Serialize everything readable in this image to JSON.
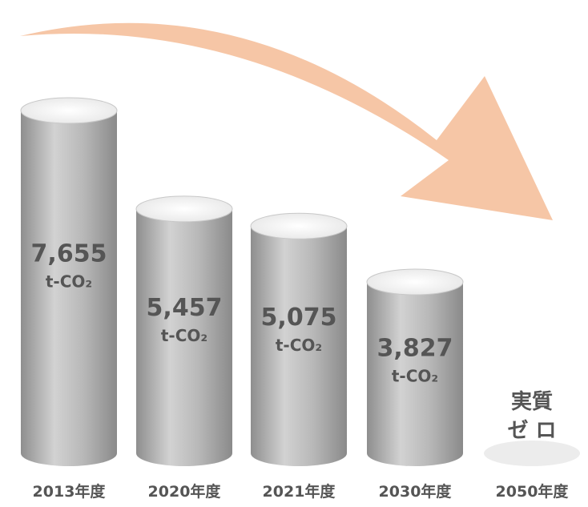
{
  "chart_data": {
    "type": "bar",
    "title": "",
    "xlabel": "",
    "ylabel": "",
    "categories": [
      "2013年度",
      "2020年度",
      "2021年度",
      "2030年度",
      "2050年度"
    ],
    "values": [
      7655,
      5457,
      5075,
      3827,
      0
    ],
    "value_labels": [
      "7,655",
      "5,457",
      "5,075",
      "3,827",
      ""
    ],
    "unit_label": "t-CO₂",
    "zero_label_lines": [
      "実質",
      "ゼ ロ"
    ],
    "ylim": [
      0,
      7655
    ],
    "grid": false,
    "legend": "none",
    "colors": {
      "bar": "#a6a6a6",
      "bar_highlight": "#d2d2d2",
      "bar_top": "#f4f4f4",
      "arrow": "#f6c6a6",
      "text": "#555555"
    }
  }
}
